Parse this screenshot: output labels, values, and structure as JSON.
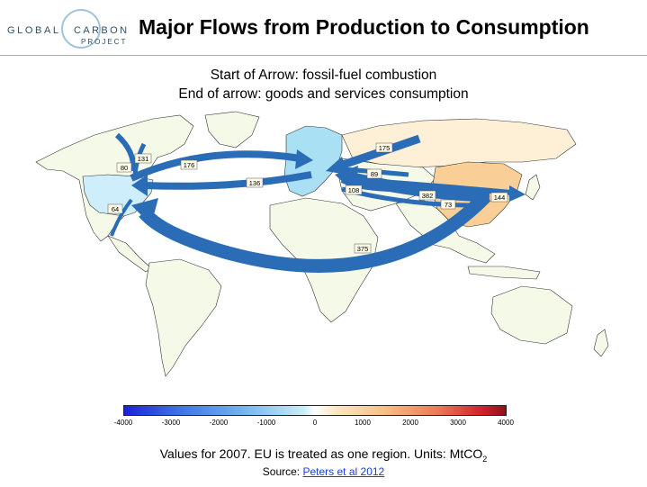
{
  "header": {
    "logo": {
      "line1": "GLOBAL",
      "line2": "CARBON",
      "line3": "PROJECT"
    },
    "title": "Major Flows from Production to Consumption"
  },
  "subtitle": {
    "line1": "Start of Arrow: fossil-fuel combustion",
    "line2": "End of arrow: goods and services consumption"
  },
  "map": {
    "colors": {
      "water": "#ffffff",
      "land_default": "#f4f9e8",
      "usa": "#cdeefa",
      "eu": "#a9e0f3",
      "china": "#f9cf97",
      "russia": "#fdf0d6",
      "arrow": "#2b6cb6",
      "border": "#333333"
    },
    "flows": [
      {
        "label": "131"
      },
      {
        "label": "80"
      },
      {
        "label": "64"
      },
      {
        "label": "176"
      },
      {
        "label": "136"
      },
      {
        "label": "175"
      },
      {
        "label": "89"
      },
      {
        "label": "108"
      },
      {
        "label": "382"
      },
      {
        "label": "73"
      },
      {
        "label": "144"
      },
      {
        "label": "375"
      }
    ]
  },
  "colorbar": {
    "ticks": [
      "-4000",
      "-3000",
      "-2000",
      "-1000",
      "0",
      "1000",
      "2000",
      "3000",
      "4000"
    ]
  },
  "footer": {
    "note": "Values for 2007. EU is treated as one region. Units: MtCO",
    "note_subscript": "2",
    "source_prefix": "Source: ",
    "source_link": "Peters et al 2012"
  }
}
